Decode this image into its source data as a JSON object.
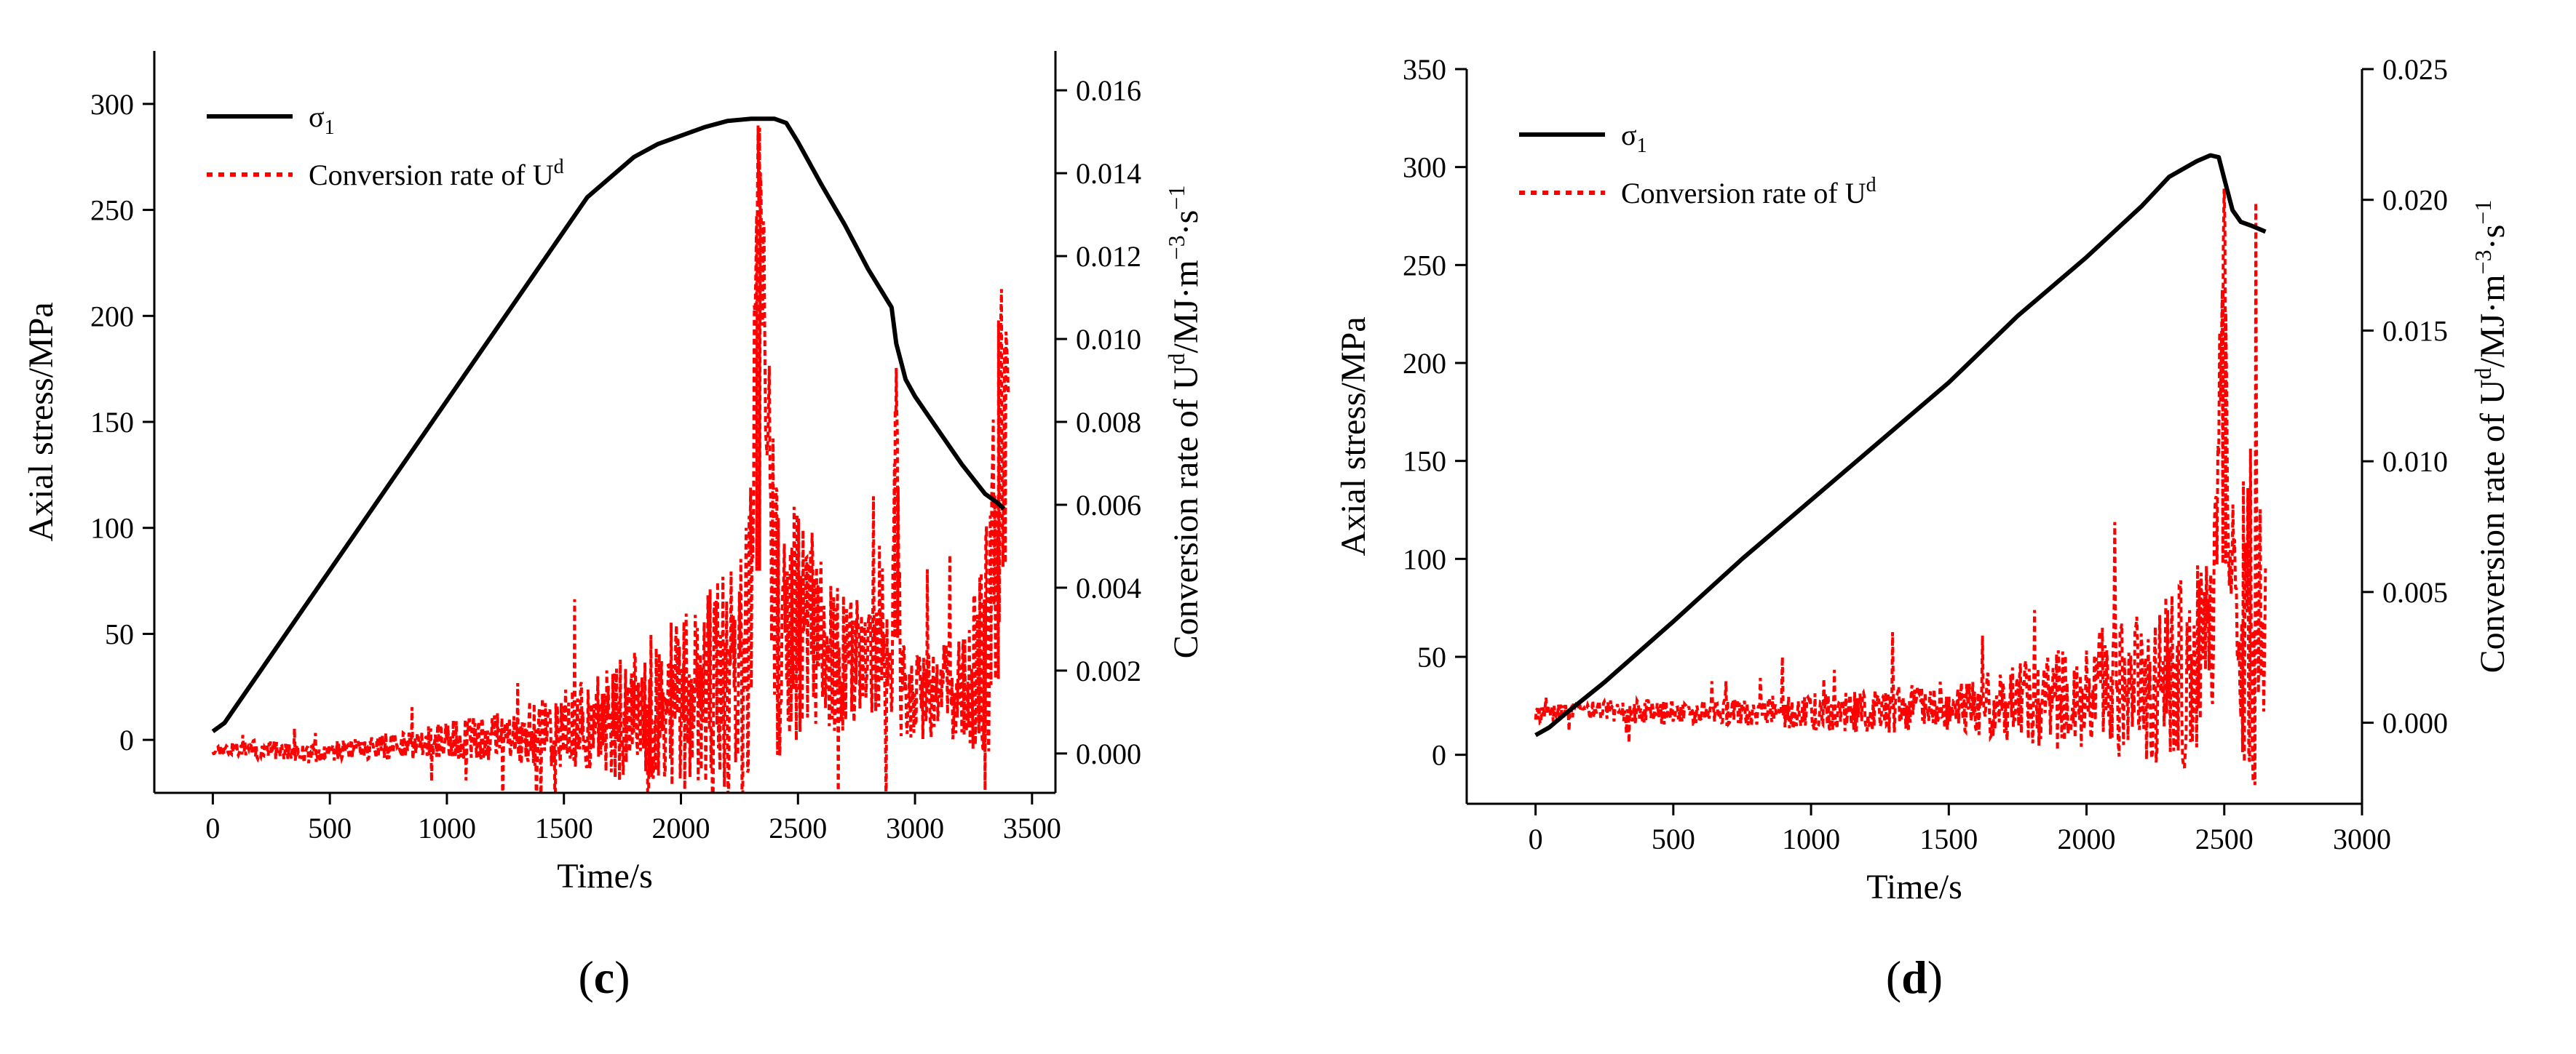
{
  "colors": {
    "stress": "#000000",
    "rate": "#ff0000",
    "axis": "#000000"
  },
  "chart_data": [
    {
      "panel": "c",
      "type": "line",
      "xlabel": "Time/s",
      "ylabel": "Axial stress/MPa",
      "y2label_prefix": "Conversion rate of U",
      "y2label_sup1": "d",
      "y2label_mid": "/MJ·m",
      "y2label_sup2": "−3",
      "y2label_mid2": "·s",
      "y2label_sup3": "−1",
      "xlim": [
        -250,
        3600
      ],
      "ylim": [
        -25,
        325
      ],
      "y2lim": [
        -0.00095,
        0.01695
      ],
      "xticks": [
        0,
        500,
        1000,
        1500,
        2000,
        2500,
        3000,
        3500
      ],
      "yticks": [
        0,
        50,
        100,
        150,
        200,
        250,
        300
      ],
      "y2ticks": [
        0.0,
        0.002,
        0.004,
        0.006,
        0.008,
        0.01,
        0.012,
        0.014,
        0.016
      ],
      "y2tick_labels": [
        "0.000",
        "0.002",
        "0.004",
        "0.006",
        "0.008",
        "0.010",
        "0.012",
        "0.014",
        "0.016"
      ],
      "legend": {
        "series1": "σ",
        "series1_sub": "1",
        "series2_prefix": "Conversion rate of U",
        "series2_sup": "d",
        "position": "top-left"
      },
      "stress": {
        "name": "σ1",
        "x": [
          0,
          50,
          100,
          200,
          400,
          600,
          800,
          1000,
          1200,
          1400,
          1600,
          1800,
          1900,
          2000,
          2100,
          2200,
          2300,
          2400,
          2450,
          2500,
          2600,
          2700,
          2800,
          2900,
          2920,
          2960,
          3000,
          3100,
          3200,
          3300,
          3350,
          3380
        ],
        "y": [
          4,
          8,
          16,
          32,
          64,
          96,
          128,
          160,
          192,
          224,
          256,
          275,
          281,
          285,
          289,
          292,
          293,
          293,
          291,
          282,
          262,
          243,
          222,
          204,
          187,
          170,
          162,
          146,
          130,
          116,
          112,
          109
        ]
      },
      "rate": {
        "name": "Conversion rate of Ud",
        "x": [
          0,
          200,
          400,
          600,
          800,
          1000,
          1200,
          1400,
          1600,
          1800,
          2000,
          2200,
          2300,
          2330,
          2400,
          2500,
          2600,
          2700,
          2800,
          2900,
          2920,
          2940,
          3000,
          3100,
          3200,
          3300,
          3350,
          3400
        ],
        "y": [
          0.0001,
          0.0001,
          0.0,
          0.0001,
          0.0002,
          0.0003,
          0.0004,
          0.0005,
          0.0007,
          0.0009,
          0.0012,
          0.0018,
          0.003,
          0.0147,
          0.0035,
          0.003,
          0.0025,
          0.0022,
          0.002,
          0.0018,
          0.0093,
          0.0015,
          0.0014,
          0.0014,
          0.0016,
          0.002,
          0.006,
          0.0093
        ],
        "noise": [
          0.0001,
          0.0002,
          0.0002,
          0.0002,
          0.0003,
          0.0004,
          0.0005,
          0.0007,
          0.0009,
          0.0014,
          0.0018,
          0.0025,
          0.003,
          0.001,
          0.003,
          0.0025,
          0.002,
          0.0015,
          0.0013,
          0.0012,
          0.001,
          0.001,
          0.001,
          0.001,
          0.001,
          0.0025,
          0.0035,
          0.003
        ]
      }
    },
    {
      "panel": "d",
      "type": "line",
      "xlabel": "Time/s",
      "ylabel": "Axial stress/MPa",
      "y2label_prefix": "Conversion rate of U",
      "y2label_sup1": "d",
      "y2label_mid": "/MJ·m",
      "y2label_sup2": "−3",
      "y2label_mid2": "·s",
      "y2label_sup3": "−1",
      "xlim": [
        -250,
        3000
      ],
      "ylim": [
        -25,
        350
      ],
      "y2lim": [
        -0.0031,
        0.025
      ],
      "xticks": [
        0,
        500,
        1000,
        1500,
        2000,
        2500,
        3000
      ],
      "yticks": [
        0,
        50,
        100,
        150,
        200,
        250,
        300,
        350
      ],
      "y2ticks": [
        0.0,
        0.005,
        0.01,
        0.015,
        0.02,
        0.025
      ],
      "y2tick_labels": [
        "0.000",
        "0.005",
        "0.010",
        "0.015",
        "0.020",
        "0.025"
      ],
      "legend": {
        "series1": "σ",
        "series1_sub": "1",
        "series2_prefix": "Conversion rate of U",
        "series2_sup": "d",
        "position": "top-left"
      },
      "stress": {
        "name": "σ1",
        "x": [
          0,
          50,
          100,
          250,
          500,
          750,
          1000,
          1250,
          1500,
          1750,
          2000,
          2200,
          2300,
          2400,
          2450,
          2480,
          2500,
          2530,
          2560,
          2600,
          2650
        ],
        "y": [
          10,
          14,
          20,
          37,
          68,
          100,
          130,
          160,
          190,
          224,
          254,
          280,
          295,
          303,
          306,
          305,
          294,
          278,
          272,
          270,
          267
        ]
      },
      "rate": {
        "name": "Conversion rate of Ud",
        "x": [
          0,
          200,
          400,
          600,
          800,
          1000,
          1200,
          1400,
          1600,
          1800,
          2000,
          2200,
          2300,
          2400,
          2460,
          2500,
          2520,
          2560,
          2600,
          2650
        ],
        "y": [
          0.0003,
          0.0005,
          0.0004,
          0.0004,
          0.0004,
          0.0004,
          0.0005,
          0.0005,
          0.0006,
          0.0008,
          0.001,
          0.0013,
          0.0017,
          0.002,
          0.0025,
          0.0203,
          0.004,
          0.0035,
          0.004,
          0.003
        ],
        "noise": [
          0.0003,
          0.0003,
          0.0004,
          0.0004,
          0.0005,
          0.0006,
          0.0007,
          0.0008,
          0.001,
          0.0014,
          0.002,
          0.0025,
          0.003,
          0.0035,
          0.003,
          0.001,
          0.004,
          0.005,
          0.006,
          0.004
        ]
      }
    }
  ]
}
